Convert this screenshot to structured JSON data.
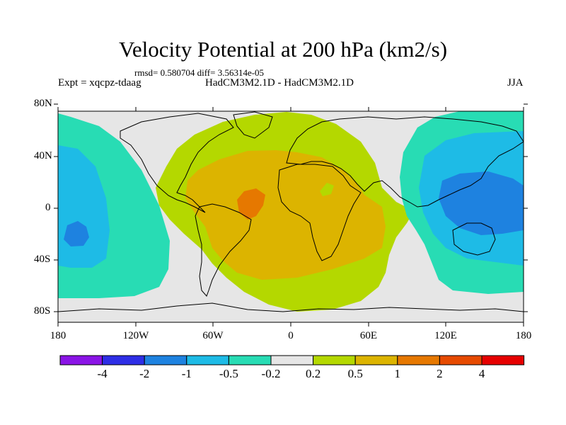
{
  "title": "Velocity Potential at 200 hPa (km2/s)",
  "stats": "rmsd= 0.580704 diff= 3.56314e-05",
  "expt_label": "Expt = xqcpz-tdaag",
  "model_label": "HadCM3M2.1D - HadCM3M2.1D",
  "season_label": "JJA",
  "y_ticks": [
    "80N",
    "40N",
    "0",
    "40S",
    "80S"
  ],
  "x_ticks": [
    "180",
    "120W",
    "60W",
    "0",
    "60E",
    "120E",
    "180"
  ],
  "colorbar": {
    "colors": [
      "#8a14e6",
      "#2e2ee6",
      "#1e82e0",
      "#1ebbe6",
      "#28dcb4",
      "#e6e6e6",
      "#b4d800",
      "#dcb400",
      "#e67800",
      "#e64a00",
      "#e60000"
    ],
    "labels": [
      "-4",
      "-2",
      "-1",
      "-0.5",
      "-0.2",
      "0.2",
      "0.5",
      "1",
      "2",
      "4"
    ]
  },
  "palette": {
    "background": "#e6e6e6",
    "neg_0_2": "#28dcb4",
    "neg_0_5": "#1ebbe6",
    "neg_1": "#1e82e0",
    "pos_0_2": "#b4d800",
    "pos_0_5": "#dcb400",
    "pos_1": "#e67800"
  }
}
